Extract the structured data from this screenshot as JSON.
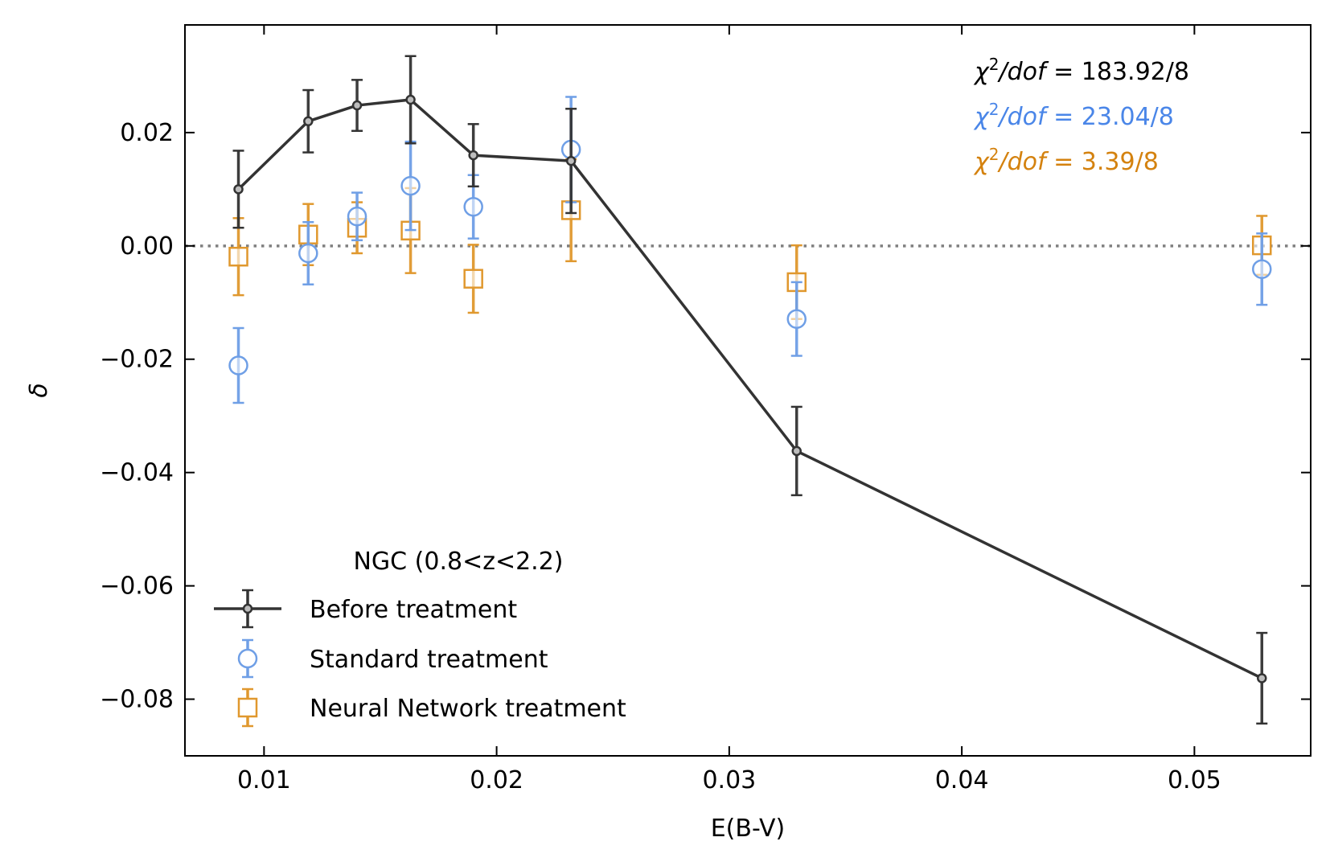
{
  "chart_data": {
    "type": "scatter",
    "xlabel": "E(B-V)",
    "ylabel": "δ",
    "xlim": [
      0.0066,
      0.055
    ],
    "ylim": [
      -0.09,
      0.039
    ],
    "x_ticks": [
      0.01,
      0.02,
      0.03,
      0.04,
      0.05
    ],
    "x_tick_labels": [
      "0.01",
      "0.02",
      "0.03",
      "0.04",
      "0.05"
    ],
    "y_ticks": [
      0.02,
      0.0,
      -0.02,
      -0.04,
      -0.06,
      -0.08
    ],
    "y_tick_labels": [
      "0.02",
      "0.00",
      "−0.02",
      "−0.04",
      "−0.06",
      "−0.08"
    ],
    "reference_line": {
      "y": 0.0,
      "style": "dotted",
      "color": "#808080"
    },
    "legend": {
      "title": "NGC (0.8<z<2.2)",
      "placement": "lower-left"
    },
    "series": [
      {
        "name": "Before treatment",
        "color": "#333333",
        "marker": "dot",
        "line": true,
        "x": [
          0.0089,
          0.0119,
          0.014,
          0.0163,
          0.019,
          0.0232,
          0.0329,
          0.0529
        ],
        "y": [
          0.01,
          0.022,
          0.0248,
          0.0258,
          0.016,
          0.015,
          -0.0362,
          -0.0763
        ],
        "yerr": [
          0.0068,
          0.0055,
          0.0045,
          0.0077,
          0.0055,
          0.0092,
          0.0078,
          0.008
        ]
      },
      {
        "name": "Standard treatment",
        "color": "#6f9fe6",
        "marker": "circle",
        "line": false,
        "x": [
          0.0089,
          0.0119,
          0.014,
          0.0163,
          0.019,
          0.0232,
          0.0329,
          0.0529
        ],
        "y": [
          -0.0211,
          -0.0013,
          0.0052,
          0.0106,
          0.0069,
          0.017,
          -0.0129,
          -0.0041
        ],
        "yerr": [
          0.0066,
          0.0055,
          0.0042,
          0.0078,
          0.0056,
          0.0093,
          0.0065,
          0.0063
        ]
      },
      {
        "name": "Neural Network treatment",
        "color": "#e0982e",
        "marker": "square",
        "line": false,
        "x": [
          0.0089,
          0.0119,
          0.014,
          0.0163,
          0.019,
          0.0232,
          0.0329,
          0.0529
        ],
        "y": [
          -0.0019,
          0.002,
          0.0032,
          0.0027,
          -0.0058,
          0.0063,
          -0.0064,
          0.0001
        ],
        "yerr": [
          0.0068,
          0.0054,
          0.0045,
          0.0075,
          0.006,
          0.009,
          0.0065,
          0.0052
        ]
      }
    ],
    "annotations": [
      {
        "text_prefix": "χ",
        "sup": "2",
        "text_mid": "/dof",
        "text_suffix": " = 183.92/8",
        "color": "#000000"
      },
      {
        "text_prefix": "χ",
        "sup": "2",
        "text_mid": "/dof",
        "text_suffix": " = 23.04/8",
        "color": "#4a86e8"
      },
      {
        "text_prefix": "χ",
        "sup": "2",
        "text_mid": "/dof",
        "text_suffix": " = 3.39/8",
        "color": "#d4820f"
      }
    ]
  }
}
